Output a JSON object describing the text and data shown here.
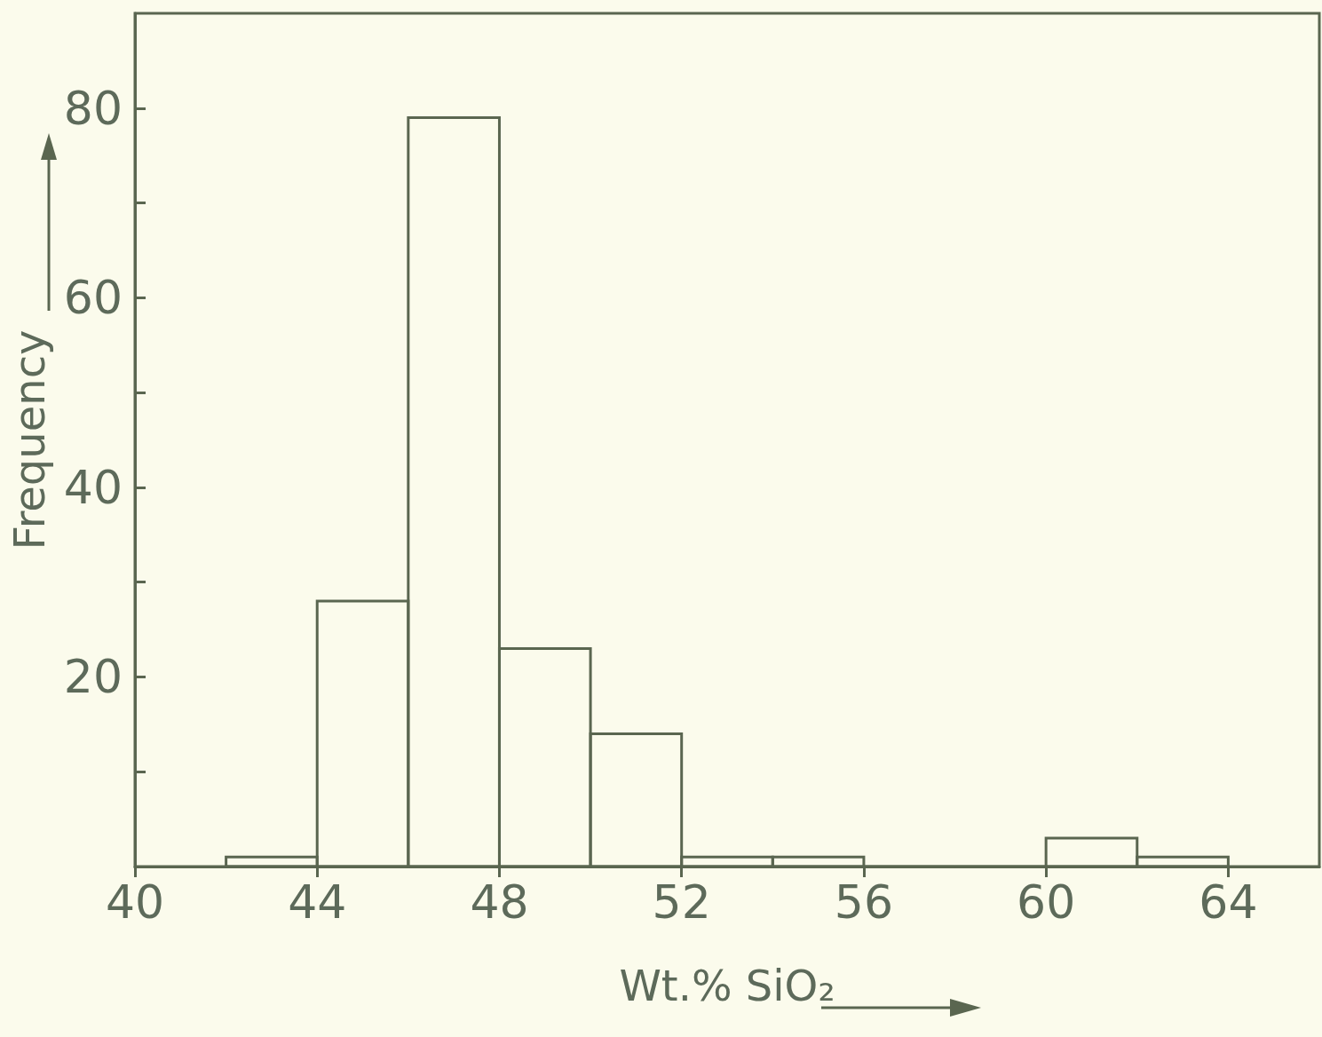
{
  "chart_data": {
    "type": "histogram",
    "xlabel": "Wt.% SiO₂",
    "ylabel": "Frequency",
    "color": "#5a6650",
    "bins": [
      42,
      44,
      46,
      48,
      50,
      52,
      54,
      56,
      58,
      60,
      62,
      64
    ],
    "values": [
      1,
      28,
      79,
      23,
      14,
      1,
      1,
      0,
      0,
      3,
      1
    ],
    "xlim": [
      40,
      66
    ],
    "xticks": [
      40,
      44,
      48,
      52,
      56,
      60,
      64
    ],
    "ylim": [
      0,
      90
    ],
    "yticks": [
      {
        "value": 10,
        "label": null
      },
      20,
      {
        "value": 30,
        "label": null
      },
      40,
      {
        "value": 50,
        "label": null
      },
      60,
      {
        "value": 70,
        "label": null
      },
      80
    ],
    "grid": false
  }
}
